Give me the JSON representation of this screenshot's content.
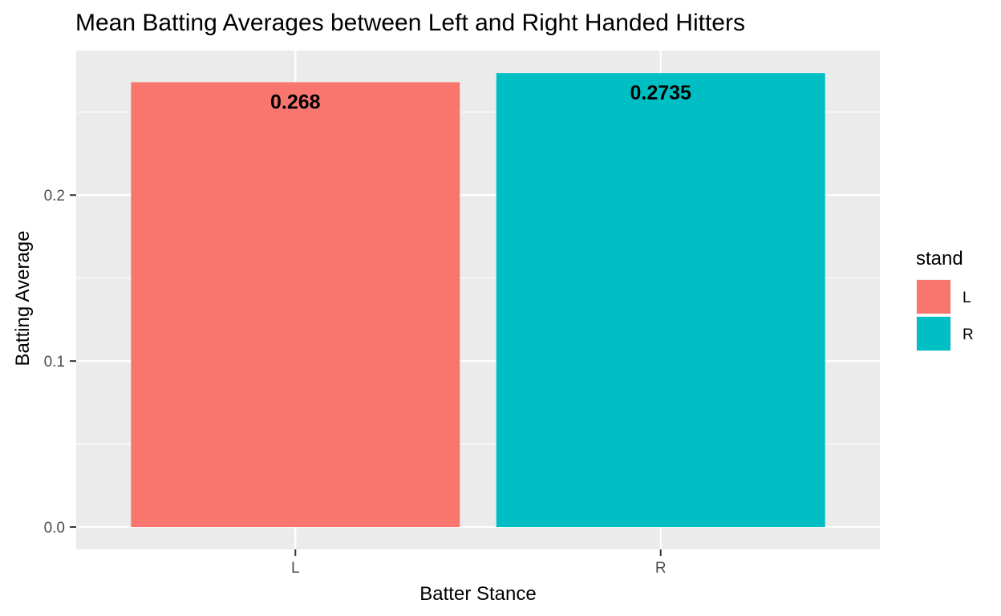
{
  "chart_data": {
    "type": "bar",
    "title": "Mean Batting Averages between Left and Right Handed Hitters",
    "xlabel": "Batter Stance",
    "ylabel": "Batting Average",
    "categories": [
      "L",
      "R"
    ],
    "values": [
      0.268,
      0.2735
    ],
    "data_labels": [
      "0.268",
      "0.2735"
    ],
    "colors": [
      "#F8766D",
      "#00BFC4"
    ],
    "ylim": [
      -0.0135,
      0.2871
    ],
    "y_ticks": [
      0.0,
      0.1,
      0.2
    ],
    "y_tick_labels": [
      "0.0",
      "0.1",
      "0.2"
    ],
    "grid": true,
    "panel_background": "#EBEBEB",
    "legend": {
      "title": "stand",
      "placement": "right",
      "entries": [
        {
          "label": "L",
          "color": "#F8766D"
        },
        {
          "label": "R",
          "color": "#00BFC4"
        }
      ]
    }
  }
}
